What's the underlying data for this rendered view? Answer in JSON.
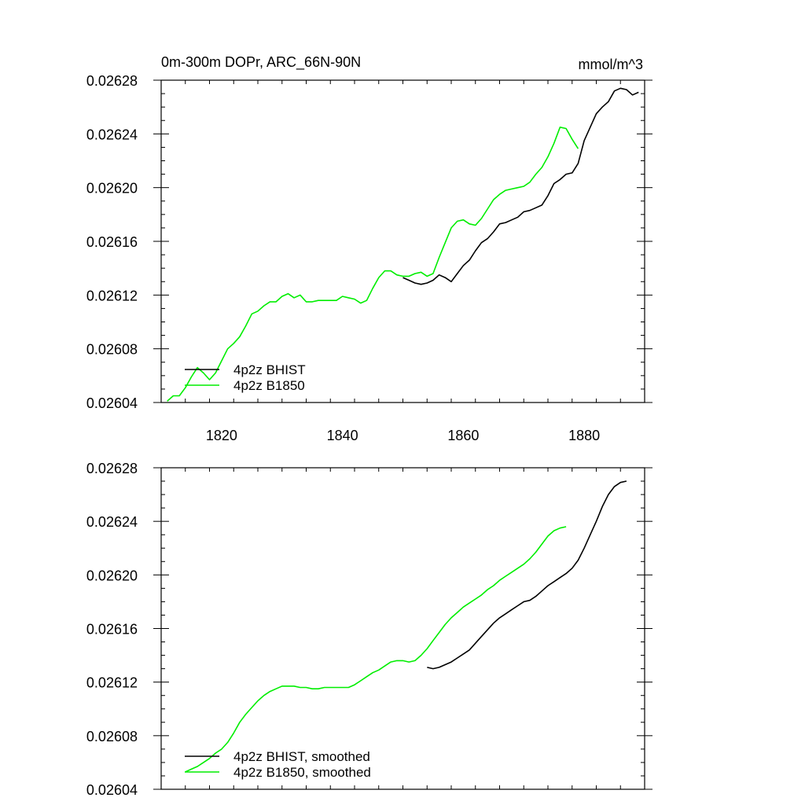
{
  "chart_data": [
    {
      "type": "line",
      "title": "0m-300m DOPr, ARC_66N-90N",
      "units_label": "mmol/m^3",
      "xlabel": "",
      "ylabel": "",
      "xlim": [
        1810,
        1890
      ],
      "ylim": [
        0.02604,
        0.02628
      ],
      "x_ticks": [
        1820,
        1840,
        1860,
        1880
      ],
      "x_tick_labels": [
        "1820",
        "1840",
        "1860",
        "1880"
      ],
      "y_ticks": [
        0.02604,
        0.02608,
        0.02612,
        0.02616,
        0.0262,
        0.02624,
        0.02628
      ],
      "y_tick_labels": [
        "0.02604",
        "0.02608",
        "0.02612",
        "0.02616",
        "0.02620",
        "0.02624",
        "0.02628"
      ],
      "legend_position": "bottom-left",
      "series": [
        {
          "name": "4p2z BHIST",
          "color": "#000000",
          "x": [
            1850,
            1851,
            1852,
            1853,
            1854,
            1855,
            1856,
            1857,
            1858,
            1859,
            1860,
            1861,
            1862,
            1863,
            1864,
            1865,
            1866,
            1867,
            1868,
            1869,
            1870,
            1871,
            1872,
            1873,
            1874,
            1875,
            1876,
            1877,
            1878,
            1879,
            1880,
            1881,
            1882,
            1883,
            1884,
            1885,
            1886,
            1887,
            1888,
            1889
          ],
          "y": [
            0.026133,
            0.026131,
            0.026129,
            0.026128,
            0.026129,
            0.026131,
            0.026135,
            0.026133,
            0.02613,
            0.026136,
            0.026142,
            0.026146,
            0.026153,
            0.026159,
            0.026162,
            0.026167,
            0.026173,
            0.026174,
            0.026176,
            0.026178,
            0.026182,
            0.026183,
            0.026185,
            0.026187,
            0.026194,
            0.026203,
            0.026206,
            0.02621,
            0.026211,
            0.026218,
            0.026235,
            0.026245,
            0.026255,
            0.02626,
            0.026264,
            0.026272,
            0.026274,
            0.026273,
            0.026269,
            0.026271
          ]
        },
        {
          "name": "4p2z B1850",
          "color": "#00ee00",
          "x": [
            1811,
            1812,
            1813,
            1814,
            1815,
            1816,
            1817,
            1818,
            1819,
            1820,
            1821,
            1822,
            1823,
            1824,
            1825,
            1826,
            1827,
            1828,
            1829,
            1830,
            1831,
            1832,
            1833,
            1834,
            1835,
            1836,
            1837,
            1838,
            1839,
            1840,
            1841,
            1842,
            1843,
            1844,
            1845,
            1846,
            1847,
            1848,
            1849,
            1850,
            1851,
            1852,
            1853,
            1854,
            1855,
            1856,
            1857,
            1858,
            1859,
            1860,
            1861,
            1862,
            1863,
            1864,
            1865,
            1866,
            1867,
            1868,
            1869,
            1870,
            1871,
            1872,
            1873,
            1874,
            1875,
            1876,
            1877,
            1878,
            1879
          ],
          "y": [
            0.026041,
            0.026045,
            0.026045,
            0.026051,
            0.026059,
            0.026066,
            0.026062,
            0.026057,
            0.026062,
            0.026071,
            0.02608,
            0.026084,
            0.026089,
            0.026097,
            0.026106,
            0.026108,
            0.026112,
            0.026115,
            0.026115,
            0.026119,
            0.026121,
            0.026118,
            0.02612,
            0.026115,
            0.026115,
            0.026116,
            0.026116,
            0.026116,
            0.026116,
            0.026119,
            0.026118,
            0.026117,
            0.026114,
            0.026116,
            0.026125,
            0.026133,
            0.026138,
            0.026138,
            0.026135,
            0.026134,
            0.026134,
            0.026136,
            0.026137,
            0.026134,
            0.026136,
            0.026148,
            0.026159,
            0.02617,
            0.026175,
            0.026176,
            0.026173,
            0.026172,
            0.026177,
            0.026184,
            0.026191,
            0.026195,
            0.026198,
            0.026199,
            0.0262,
            0.026201,
            0.026204,
            0.02621,
            0.026215,
            0.026223,
            0.026233,
            0.026245,
            0.026244,
            0.026236,
            0.026229
          ]
        }
      ]
    },
    {
      "type": "line",
      "title": "",
      "xlabel": "",
      "ylabel": "",
      "xlim": [
        1810,
        1890
      ],
      "ylim": [
        0.02604,
        0.02628
      ],
      "x_ticks": [
        1820,
        1840,
        1860,
        1880
      ],
      "y_ticks": [
        0.02604,
        0.02608,
        0.02612,
        0.02616,
        0.0262,
        0.02624,
        0.02628
      ],
      "y_tick_labels": [
        "0.02604",
        "0.02608",
        "0.02612",
        "0.02616",
        "0.02620",
        "0.02624",
        "0.02628"
      ],
      "legend_position": "bottom-left",
      "series": [
        {
          "name": "4p2z BHIST, smoothed",
          "color": "#000000",
          "x": [
            1854,
            1855,
            1856,
            1857,
            1858,
            1859,
            1860,
            1861,
            1862,
            1863,
            1864,
            1865,
            1866,
            1867,
            1868,
            1869,
            1870,
            1871,
            1872,
            1873,
            1874,
            1875,
            1876,
            1877,
            1878,
            1879,
            1880,
            1881,
            1882,
            1883,
            1884,
            1885,
            1886,
            1887
          ],
          "y": [
            0.026131,
            0.02613,
            0.026131,
            0.026133,
            0.026135,
            0.026138,
            0.026141,
            0.026144,
            0.026149,
            0.026154,
            0.026159,
            0.026164,
            0.026168,
            0.026171,
            0.026174,
            0.026177,
            0.02618,
            0.026181,
            0.026184,
            0.026188,
            0.026192,
            0.026195,
            0.026198,
            0.026201,
            0.026205,
            0.026211,
            0.02622,
            0.02623,
            0.02624,
            0.026251,
            0.02626,
            0.026266,
            0.026269,
            0.02627
          ]
        },
        {
          "name": "4p2z B1850, smoothed",
          "color": "#00ee00",
          "x": [
            1814,
            1815,
            1816,
            1817,
            1818,
            1819,
            1820,
            1821,
            1822,
            1823,
            1824,
            1825,
            1826,
            1827,
            1828,
            1829,
            1830,
            1831,
            1832,
            1833,
            1834,
            1835,
            1836,
            1837,
            1838,
            1839,
            1840,
            1841,
            1842,
            1843,
            1844,
            1845,
            1846,
            1847,
            1848,
            1849,
            1850,
            1851,
            1852,
            1853,
            1854,
            1855,
            1856,
            1857,
            1858,
            1859,
            1860,
            1861,
            1862,
            1863,
            1864,
            1865,
            1866,
            1867,
            1868,
            1869,
            1870,
            1871,
            1872,
            1873,
            1874,
            1875,
            1876,
            1877
          ],
          "y": [
            0.026053,
            0.026055,
            0.026057,
            0.02606,
            0.026063,
            0.026067,
            0.02607,
            0.026075,
            0.026082,
            0.02609,
            0.026096,
            0.026101,
            0.026106,
            0.02611,
            0.026113,
            0.026115,
            0.026117,
            0.026117,
            0.026117,
            0.026116,
            0.026116,
            0.026115,
            0.026115,
            0.026116,
            0.026116,
            0.026116,
            0.026116,
            0.026116,
            0.026118,
            0.026121,
            0.026124,
            0.026127,
            0.026129,
            0.026132,
            0.026135,
            0.026136,
            0.026136,
            0.026135,
            0.026136,
            0.02614,
            0.026145,
            0.026151,
            0.026157,
            0.026163,
            0.026168,
            0.026172,
            0.026176,
            0.026179,
            0.026182,
            0.026185,
            0.026189,
            0.026192,
            0.026196,
            0.026199,
            0.026202,
            0.026205,
            0.026208,
            0.026212,
            0.026217,
            0.026223,
            0.026229,
            0.026233,
            0.026235,
            0.026236
          ]
        }
      ]
    }
  ]
}
